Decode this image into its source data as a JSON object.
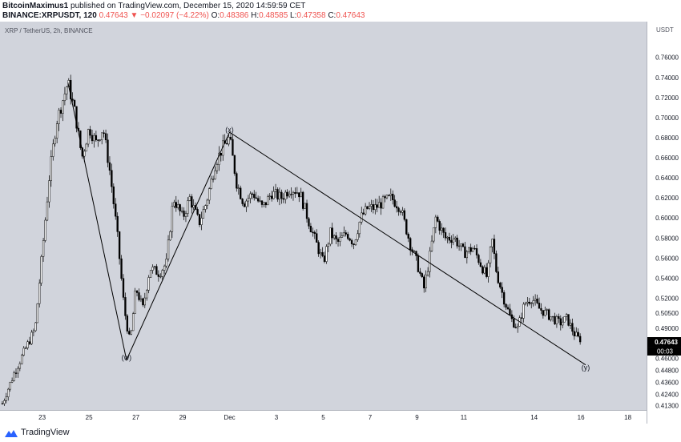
{
  "header": {
    "author": "BitcoinMaximus1",
    "published": "published on TradingView.com, December 15, 2020 14:59:59 CET",
    "symbol": "BINANCE:XRPUSDT, 120",
    "last": "0.47643",
    "change": "▼ −0.02097 (−4.22%)",
    "o_label": "O:",
    "o_value": "0.48386",
    "h_label": "H:",
    "h_value": "0.48585",
    "l_label": "L:",
    "l_value": "0.47358",
    "c_label": "C:",
    "c_value": "0.47643"
  },
  "footer": {
    "brand": "TradingView"
  },
  "chart_data": {
    "type": "candlestick",
    "legend": "XRP / TetherUS, 2h, BINANCE",
    "currency": "USDT",
    "y_axis_side": "right",
    "ylim": [
      0.4086,
      0.7957
    ],
    "y_ticks": [
      "0.41300",
      "0.42400",
      "0.43600",
      "0.44800",
      "0.46000",
      "0.47643",
      "0.49000",
      "0.50500",
      "0.52000",
      "0.54000",
      "0.56000",
      "0.58000",
      "0.60000",
      "0.62000",
      "0.64000",
      "0.66000",
      "0.68000",
      "0.70000",
      "0.72000",
      "0.74000",
      "0.76000"
    ],
    "y_tick_values": [
      0.413,
      0.424,
      0.436,
      0.448,
      0.46,
      0.47643,
      0.49,
      0.505,
      0.52,
      0.54,
      0.56,
      0.58,
      0.6,
      0.62,
      0.64,
      0.66,
      0.68,
      0.7,
      0.72,
      0.74,
      0.76
    ],
    "x_ticks": [
      {
        "label": "23",
        "day": 23
      },
      {
        "label": "25",
        "day": 25
      },
      {
        "label": "27",
        "day": 27
      },
      {
        "label": "29",
        "day": 29
      },
      {
        "label": "Dec",
        "day": 31
      },
      {
        "label": "3",
        "day": 33
      },
      {
        "label": "5",
        "day": 35
      },
      {
        "label": "7",
        "day": 37
      },
      {
        "label": "9",
        "day": 39
      },
      {
        "label": "11",
        "day": 41
      },
      {
        "label": "14",
        "day": 44
      },
      {
        "label": "16",
        "day": 46
      },
      {
        "label": "18",
        "day": 48
      }
    ],
    "x_range_days": [
      21.2,
      48.8
    ],
    "last_price": {
      "label": "0.47643",
      "value": 0.47643,
      "countdown": "00:03"
    },
    "waves": [
      {
        "label": "(w)",
        "day": 26.6,
        "price": 0.4585
      },
      {
        "label": "(x)",
        "day": 31.0,
        "price": 0.6855
      },
      {
        "label": "(y)",
        "day": 46.2,
        "price": 0.4485
      }
    ],
    "wave_path": [
      {
        "day": 24.1,
        "price": 0.735
      },
      {
        "day": 26.6,
        "price": 0.4585
      },
      {
        "day": 31.0,
        "price": 0.6855
      },
      {
        "day": 46.2,
        "price": 0.4535
      }
    ],
    "path_keypoints": [
      [
        21.3,
        0.415
      ],
      [
        21.8,
        0.445
      ],
      [
        22.3,
        0.47
      ],
      [
        22.7,
        0.49
      ],
      [
        23.0,
        0.565
      ],
      [
        23.3,
        0.64
      ],
      [
        23.6,
        0.695
      ],
      [
        24.1,
        0.735
      ],
      [
        24.4,
        0.705
      ],
      [
        24.7,
        0.66
      ],
      [
        25.0,
        0.69
      ],
      [
        25.3,
        0.675
      ],
      [
        25.6,
        0.69
      ],
      [
        25.9,
        0.645
      ],
      [
        26.2,
        0.585
      ],
      [
        26.5,
        0.51
      ],
      [
        26.75,
        0.475
      ],
      [
        27.0,
        0.53
      ],
      [
        27.3,
        0.51
      ],
      [
        27.6,
        0.55
      ],
      [
        28.0,
        0.545
      ],
      [
        28.3,
        0.555
      ],
      [
        28.6,
        0.62
      ],
      [
        29.0,
        0.6
      ],
      [
        29.3,
        0.62
      ],
      [
        29.7,
        0.595
      ],
      [
        30.0,
        0.615
      ],
      [
        30.4,
        0.655
      ],
      [
        30.7,
        0.67
      ],
      [
        31.0,
        0.68
      ],
      [
        31.3,
        0.635
      ],
      [
        31.6,
        0.615
      ],
      [
        32.0,
        0.625
      ],
      [
        32.4,
        0.61
      ],
      [
        32.8,
        0.625
      ],
      [
        33.2,
        0.62
      ],
      [
        33.6,
        0.63
      ],
      [
        34.0,
        0.625
      ],
      [
        34.4,
        0.595
      ],
      [
        34.7,
        0.575
      ],
      [
        35.0,
        0.555
      ],
      [
        35.3,
        0.585
      ],
      [
        35.6,
        0.575
      ],
      [
        36.0,
        0.585
      ],
      [
        36.3,
        0.575
      ],
      [
        36.6,
        0.6
      ],
      [
        36.9,
        0.61
      ],
      [
        37.2,
        0.61
      ],
      [
        37.5,
        0.615
      ],
      [
        37.9,
        0.62
      ],
      [
        38.3,
        0.61
      ],
      [
        38.7,
        0.575
      ],
      [
        39.0,
        0.555
      ],
      [
        39.3,
        0.53
      ],
      [
        39.5,
        0.555
      ],
      [
        39.8,
        0.6
      ],
      [
        40.2,
        0.58
      ],
      [
        40.6,
        0.58
      ],
      [
        41.0,
        0.565
      ],
      [
        41.4,
        0.57
      ],
      [
        41.7,
        0.555
      ],
      [
        42.0,
        0.54
      ],
      [
        42.2,
        0.58
      ],
      [
        42.4,
        0.545
      ],
      [
        42.7,
        0.52
      ],
      [
        43.0,
        0.5
      ],
      [
        43.3,
        0.49
      ],
      [
        43.6,
        0.515
      ],
      [
        43.9,
        0.52
      ],
      [
        44.2,
        0.51
      ],
      [
        44.5,
        0.505
      ],
      [
        44.8,
        0.5
      ],
      [
        45.1,
        0.495
      ],
      [
        45.4,
        0.5
      ],
      [
        45.7,
        0.485
      ],
      [
        46.0,
        0.4765
      ]
    ]
  }
}
